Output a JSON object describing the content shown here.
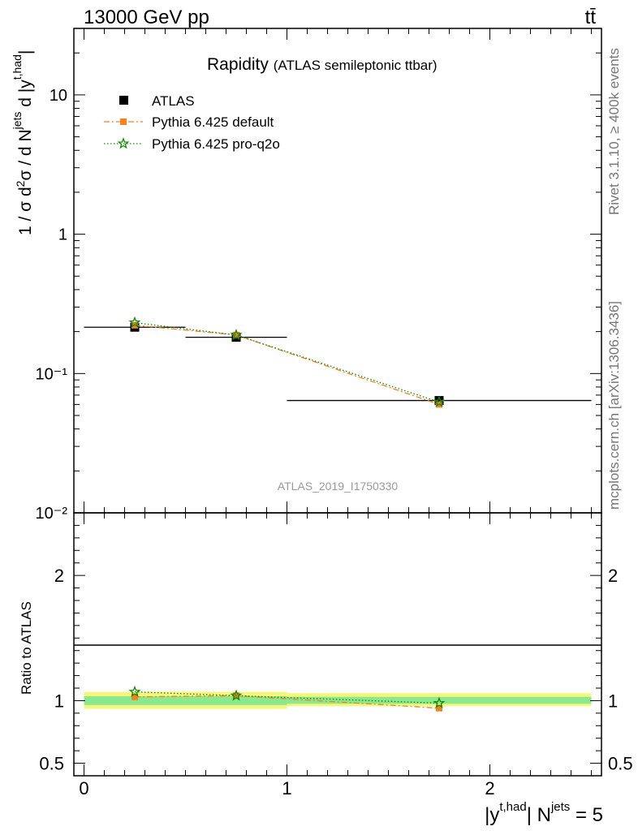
{
  "header": {
    "energy_label": "13000 GeV pp",
    "process_label": "tt̄"
  },
  "side_labels": {
    "rivet": "Rivet 3.1.10, ≥ 400k events",
    "mcplots": "mcplots.cern.ch [arXiv:1306.3436]"
  },
  "chart_data": [
    {
      "type": "line",
      "title": "Rapidity",
      "subtitle": "(ATLAS semileptonic ttbar)",
      "analysis_label": "ATLAS_2019_I1750330",
      "ylabel": "1 / σ d²σ / d N^jets d |y^t,had|",
      "yscale": "log",
      "ylim": [
        0.01,
        30
      ],
      "xlim": [
        -0.05,
        2.55
      ],
      "ytick_labels": [
        "10⁻²",
        "10⁻¹",
        "1",
        "10"
      ],
      "legend_position": "top-left",
      "series": [
        {
          "name": "ATLAS",
          "marker": "square",
          "color": "#000000",
          "x": [
            0.25,
            0.75,
            1.75
          ],
          "y": [
            0.215,
            0.182,
            0.064
          ],
          "xerr": [
            0.25,
            0.25,
            0.75
          ]
        },
        {
          "name": "Pythia 6.425 default",
          "marker": "square",
          "color": "#f58220",
          "linestyle": "dashdot",
          "x": [
            0.25,
            0.75,
            1.75
          ],
          "y": [
            0.222,
            0.189,
            0.06
          ]
        },
        {
          "name": "Pythia 6.425 pro-q2o",
          "marker": "star",
          "color": "#138a00",
          "linestyle": "dotted",
          "x": [
            0.25,
            0.75,
            1.75
          ],
          "y": [
            0.232,
            0.189,
            0.0625
          ]
        }
      ]
    },
    {
      "type": "line",
      "ylabel": "Ratio to ATLAS",
      "xlabel": "|y^t,had| N^jets = 5",
      "ylim": [
        0.4,
        2.5
      ],
      "yticks": [
        0.5,
        1,
        2
      ],
      "ytick_labels": [
        "0.5",
        "1",
        "2"
      ],
      "xticks": [
        0,
        1,
        2
      ],
      "xtick_labels": [
        "0",
        "1",
        "2"
      ],
      "bands": [
        {
          "xlow": 0.0,
          "xhigh": 0.5,
          "stat_low": 0.965,
          "stat_high": 1.035,
          "total_low": 0.935,
          "total_high": 1.07
        },
        {
          "xlow": 0.5,
          "xhigh": 1.0,
          "stat_low": 0.965,
          "stat_high": 1.035,
          "total_low": 0.935,
          "total_high": 1.07
        },
        {
          "xlow": 1.0,
          "xhigh": 2.5,
          "stat_low": 0.975,
          "stat_high": 1.03,
          "total_low": 0.955,
          "total_high": 1.06
        }
      ],
      "band_colors": {
        "total": "#f4f77a",
        "stat": "#8be88f"
      },
      "series": [
        {
          "name": "Pythia 6.425 default",
          "marker": "square",
          "color": "#f58220",
          "linestyle": "dashdot",
          "x": [
            0.25,
            0.75,
            1.75
          ],
          "y": [
            1.03,
            1.04,
            0.94
          ]
        },
        {
          "name": "Pythia 6.425 pro-q2o",
          "marker": "star",
          "color": "#138a00",
          "linestyle": "dotted",
          "x": [
            0.25,
            0.75,
            1.75
          ],
          "y": [
            1.07,
            1.04,
            0.98
          ]
        }
      ]
    }
  ]
}
